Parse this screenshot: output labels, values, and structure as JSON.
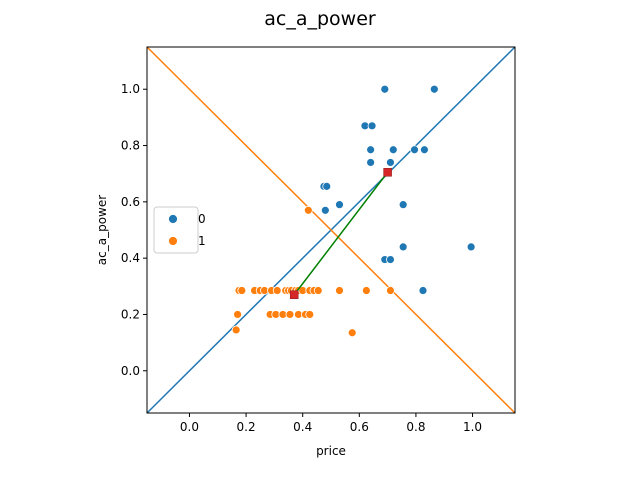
{
  "chart_data": {
    "type": "scatter",
    "title": "ac_a_power",
    "xlabel": "price",
    "ylabel": "ac_a_power",
    "xlim": [
      -0.15,
      1.15
    ],
    "ylim": [
      -0.15,
      1.15
    ],
    "xticks": [
      "0.0",
      "0.2",
      "0.4",
      "0.6",
      "0.8",
      "1.0"
    ],
    "yticks": [
      "0.0",
      "0.2",
      "0.4",
      "0.6",
      "0.8",
      "1.0"
    ],
    "grid": false,
    "legend_position": "center-left",
    "series": [
      {
        "name": "0",
        "color": "#1f77b4",
        "points": [
          [
            0.69,
            1.0
          ],
          [
            0.865,
            1.0
          ],
          [
            0.62,
            0.87
          ],
          [
            0.645,
            0.87
          ],
          [
            0.64,
            0.785
          ],
          [
            0.72,
            0.785
          ],
          [
            0.795,
            0.785
          ],
          [
            0.83,
            0.785
          ],
          [
            0.64,
            0.74
          ],
          [
            0.71,
            0.74
          ],
          [
            0.475,
            0.655
          ],
          [
            0.485,
            0.655
          ],
          [
            0.53,
            0.59
          ],
          [
            0.755,
            0.59
          ],
          [
            0.48,
            0.57
          ],
          [
            0.755,
            0.44
          ],
          [
            0.995,
            0.44
          ],
          [
            0.69,
            0.395
          ],
          [
            0.71,
            0.395
          ],
          [
            0.825,
            0.285
          ]
        ]
      },
      {
        "name": "1",
        "color": "#ff7f0e",
        "points": [
          [
            0.42,
            0.57
          ],
          [
            0.175,
            0.285
          ],
          [
            0.185,
            0.285
          ],
          [
            0.23,
            0.285
          ],
          [
            0.25,
            0.285
          ],
          [
            0.265,
            0.285
          ],
          [
            0.29,
            0.285
          ],
          [
            0.31,
            0.285
          ],
          [
            0.34,
            0.285
          ],
          [
            0.35,
            0.285
          ],
          [
            0.36,
            0.285
          ],
          [
            0.375,
            0.285
          ],
          [
            0.385,
            0.285
          ],
          [
            0.4,
            0.285
          ],
          [
            0.425,
            0.285
          ],
          [
            0.44,
            0.285
          ],
          [
            0.455,
            0.285
          ],
          [
            0.53,
            0.285
          ],
          [
            0.625,
            0.285
          ],
          [
            0.71,
            0.285
          ],
          [
            0.17,
            0.2
          ],
          [
            0.285,
            0.2
          ],
          [
            0.305,
            0.2
          ],
          [
            0.33,
            0.2
          ],
          [
            0.355,
            0.2
          ],
          [
            0.385,
            0.2
          ],
          [
            0.41,
            0.2
          ],
          [
            0.425,
            0.2
          ],
          [
            0.165,
            0.145
          ],
          [
            0.575,
            0.135
          ]
        ]
      }
    ],
    "diagonals": [
      {
        "from": [
          -0.15,
          -0.15
        ],
        "to": [
          1.15,
          1.15
        ],
        "color": "#1f77b4"
      },
      {
        "from": [
          -0.15,
          1.15
        ],
        "to": [
          1.15,
          -0.15
        ],
        "color": "#ff7f0e"
      }
    ],
    "connector": {
      "from": [
        0.37,
        0.27
      ],
      "to": [
        0.7,
        0.705
      ],
      "color": "#008000"
    },
    "markers": [
      {
        "at": [
          0.37,
          0.27
        ],
        "color": "#d62728",
        "shape": "square"
      },
      {
        "at": [
          0.7,
          0.705
        ],
        "color": "#d62728",
        "shape": "square"
      }
    ]
  }
}
